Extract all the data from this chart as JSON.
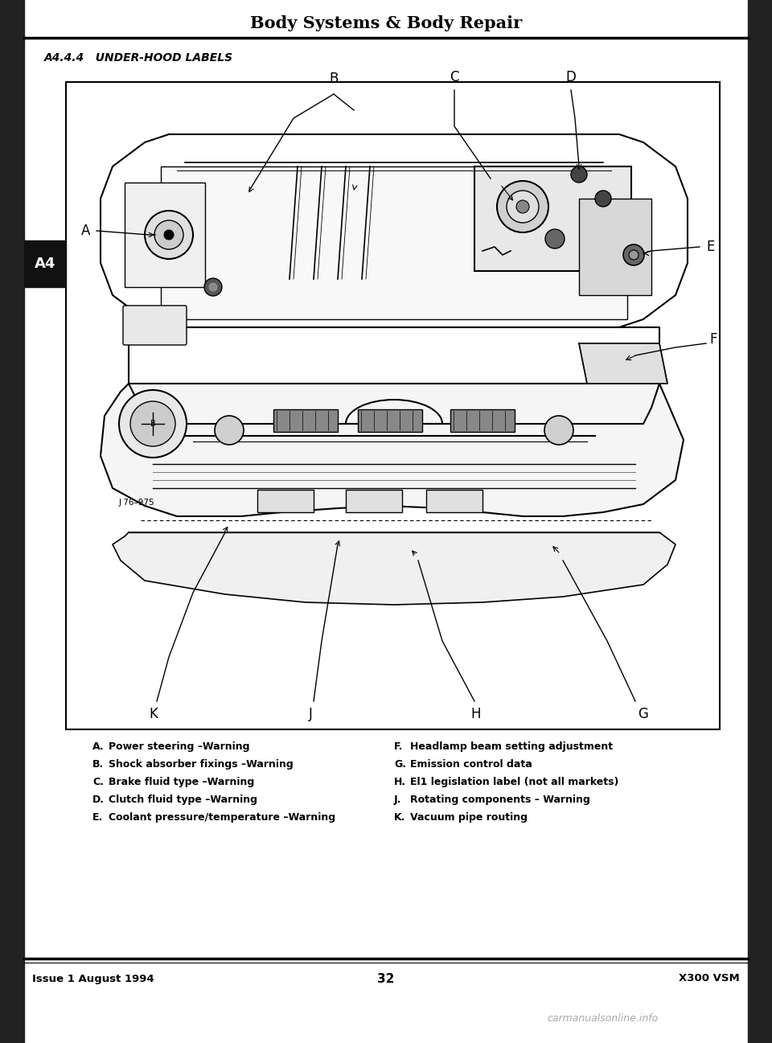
{
  "page_title": "Body Systems & Body Repair",
  "section_label": "A4.4.4   UNDER-HOOD LABELS",
  "tab_label": "A4",
  "footer_left": "Issue 1 August 1994",
  "footer_center": "32",
  "footer_right": "X300 VSM",
  "watermark": "carmanualsonline.info",
  "bg_color": "#ffffff",
  "legend_items_left": [
    [
      "A.",
      "Power steering –Warning"
    ],
    [
      "B.",
      "Shock absorber fixings –Warning"
    ],
    [
      "C.",
      "Brake fluid type –Warning"
    ],
    [
      "D.",
      "Clutch fluid type –Warning"
    ],
    [
      "E.",
      "Coolant pressure/temperature –Warning"
    ]
  ],
  "legend_items_right": [
    [
      "F.",
      "Headlamp beam setting adjustment"
    ],
    [
      "G.",
      "Emission control data"
    ],
    [
      "H.",
      "El1 legislation label (not all markets)"
    ],
    [
      "J.",
      "Rotating components – Warning"
    ],
    [
      "K.",
      "Vacuum pipe routing"
    ]
  ]
}
